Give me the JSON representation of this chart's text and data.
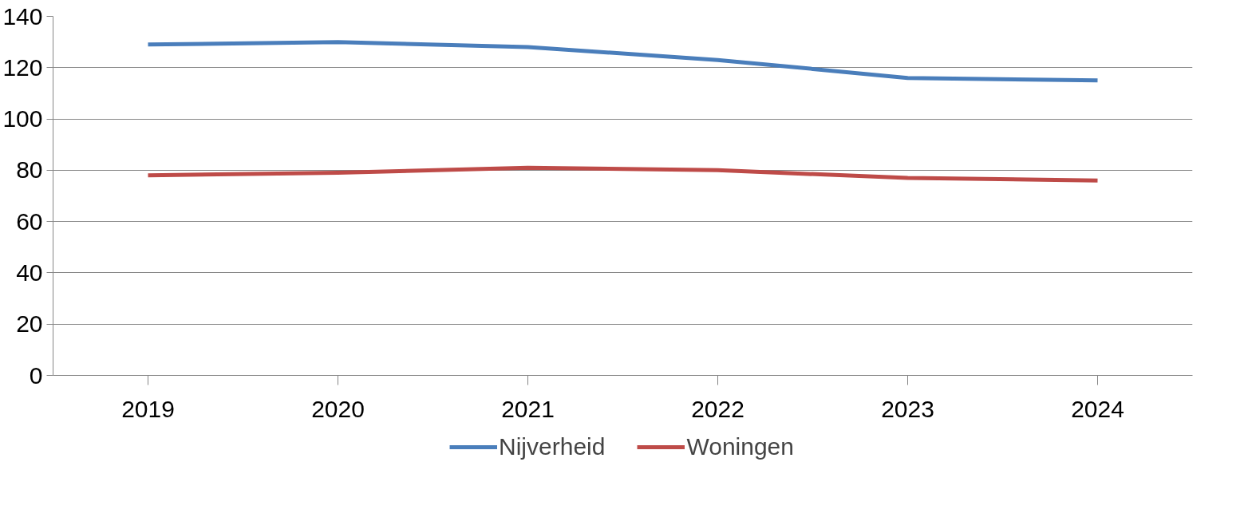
{
  "chart_data": {
    "type": "line",
    "categories": [
      "2019",
      "2020",
      "2021",
      "2022",
      "2023",
      "2024"
    ],
    "series": [
      {
        "name": "Nijverheid",
        "color": "#4a7ebb",
        "values": [
          129,
          130,
          128,
          123,
          116,
          115
        ]
      },
      {
        "name": "Woningen",
        "color": "#be4b48",
        "values": [
          78,
          79,
          81,
          80,
          77,
          76
        ]
      }
    ],
    "ylim": [
      0,
      140
    ],
    "yticks": [
      0,
      20,
      40,
      60,
      80,
      100,
      120,
      140
    ],
    "grid": "y",
    "legend": "bottom",
    "marker": "none",
    "line_style": "solid"
  }
}
